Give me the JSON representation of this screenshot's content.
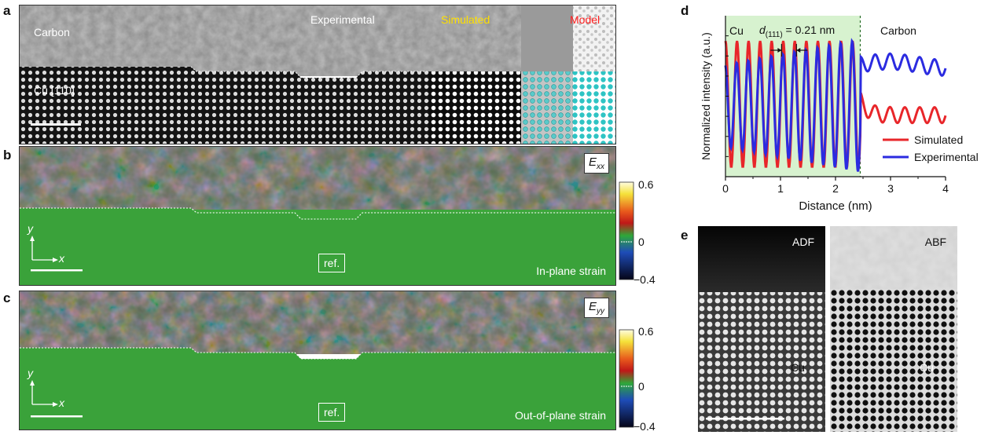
{
  "panels": {
    "a": {
      "letter": "a",
      "labels": {
        "carbon": "Carbon",
        "experimental": "Experimental",
        "simulated": "Simulated",
        "model": "Model",
        "cu": "Cu [110]"
      },
      "colors": {
        "simulated": "#ffe000",
        "model": "#ff2020"
      }
    },
    "b": {
      "letter": "b",
      "map_label": "E",
      "map_sub": "xx",
      "ref": "ref.",
      "caption": "In-plane strain",
      "axis_y": "y",
      "axis_x": "x"
    },
    "c": {
      "letter": "c",
      "map_label": "E",
      "map_sub": "yy",
      "ref": "ref.",
      "caption": "Out-of-plane strain",
      "axis_y": "y",
      "axis_x": "x"
    },
    "colorbar": {
      "ticks": [
        "0.6",
        "0",
        "−0.4"
      ]
    },
    "d": {
      "letter": "d",
      "cu": "Cu",
      "carbon": "Carbon",
      "d_label_main": "d",
      "d_label_sub": "(111)",
      "d_label_value": " = 0.21 nm"
    },
    "e": {
      "letter": "e",
      "adf": "ADF",
      "abf": "ABF",
      "cu_left": "Cu",
      "cu_right": "Cu"
    }
  },
  "chart_data": {
    "type": "line",
    "title": "",
    "xlabel": "Distance (nm)",
    "ylabel": "Normalized intensity (a.u.)",
    "xlim": [
      0,
      4
    ],
    "xticks": [
      "0",
      "1",
      "2",
      "3",
      "4"
    ],
    "interface_x": 2.45,
    "period_nm": 0.21,
    "legend": {
      "placement": "right"
    },
    "series": [
      {
        "name": "Simulated",
        "color": "#e8262a"
      },
      {
        "name": "Experimental",
        "color": "#2b2be0"
      }
    ]
  }
}
